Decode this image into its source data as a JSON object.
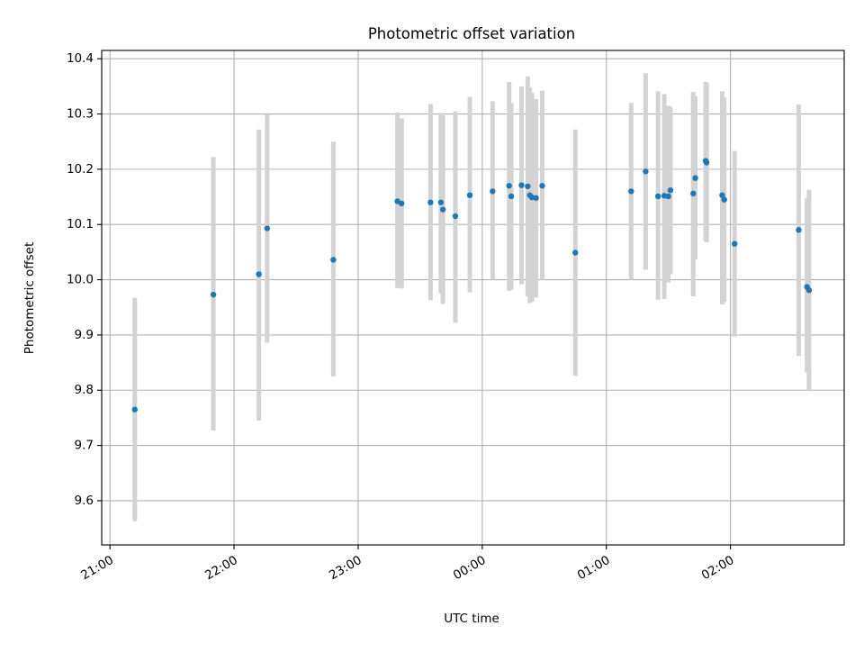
{
  "chart_data": {
    "type": "scatter",
    "title": "Photometric offset variation",
    "xlabel": "UTC time",
    "ylabel": "Photometric offset",
    "x_axis": {
      "type": "time",
      "start": "2024-01-01T20:56:00",
      "end": "2024-01-02T02:55:00",
      "ticks": [
        {
          "time": "2024-01-01T21:00:00",
          "label": "21:00"
        },
        {
          "time": "2024-01-01T22:00:00",
          "label": "22:00"
        },
        {
          "time": "2024-01-01T23:00:00",
          "label": "23:00"
        },
        {
          "time": "2024-01-02T00:00:00",
          "label": "00:00"
        },
        {
          "time": "2024-01-02T01:00:00",
          "label": "01:00"
        },
        {
          "time": "2024-01-02T02:00:00",
          "label": "02:00"
        }
      ]
    },
    "y_axis": {
      "ylim": [
        9.52,
        10.415
      ],
      "ticks": [
        9.6,
        9.7,
        9.8,
        9.9,
        10.0,
        10.1,
        10.2,
        10.3,
        10.4
      ],
      "tick_labels": [
        "9.6",
        "9.7",
        "9.8",
        "9.9",
        "10.0",
        "10.1",
        "10.2",
        "10.3",
        "10.4"
      ]
    },
    "grid": true,
    "legend": "none",
    "colors": {
      "marker": "#1f77b4",
      "errorbar": "#d3d3d3",
      "grid": "#b0b0b0"
    },
    "points": [
      {
        "t": "2024-01-01T21:12:00",
        "y": 9.765,
        "lo": 9.563,
        "hi": 9.967
      },
      {
        "t": "2024-01-01T21:50:00",
        "y": 9.973,
        "lo": 9.727,
        "hi": 10.222
      },
      {
        "t": "2024-01-01T22:12:00",
        "y": 10.01,
        "lo": 9.745,
        "hi": 10.272
      },
      {
        "t": "2024-01-01T22:16:00",
        "y": 10.093,
        "lo": 9.886,
        "hi": 10.3
      },
      {
        "t": "2024-01-01T22:48:00",
        "y": 10.036,
        "lo": 9.825,
        "hi": 10.25
      },
      {
        "t": "2024-01-01T23:19:00",
        "y": 10.142,
        "lo": 9.985,
        "hi": 10.303
      },
      {
        "t": "2024-01-01T23:21:00",
        "y": 10.138,
        "lo": 9.984,
        "hi": 10.292
      },
      {
        "t": "2024-01-01T23:35:00",
        "y": 10.14,
        "lo": 9.963,
        "hi": 10.318
      },
      {
        "t": "2024-01-01T23:40:00",
        "y": 10.14,
        "lo": 9.975,
        "hi": 10.302
      },
      {
        "t": "2024-01-01T23:41:00",
        "y": 10.127,
        "lo": 9.956,
        "hi": 10.298
      },
      {
        "t": "2024-01-01T23:47:00",
        "y": 10.115,
        "lo": 9.922,
        "hi": 10.305
      },
      {
        "t": "2024-01-01T23:54:00",
        "y": 10.153,
        "lo": 9.977,
        "hi": 10.331
      },
      {
        "t": "2024-01-02T00:05:00",
        "y": 10.16,
        "lo": 10.0,
        "hi": 10.323
      },
      {
        "t": "2024-01-02T00:13:00",
        "y": 10.17,
        "lo": 9.98,
        "hi": 10.358
      },
      {
        "t": "2024-01-02T00:14:00",
        "y": 10.151,
        "lo": 9.982,
        "hi": 10.32
      },
      {
        "t": "2024-01-02T00:19:00",
        "y": 10.171,
        "lo": 9.992,
        "hi": 10.35
      },
      {
        "t": "2024-01-02T00:22:00",
        "y": 10.169,
        "lo": 9.97,
        "hi": 10.368
      },
      {
        "t": "2024-01-02T00:23:00",
        "y": 10.153,
        "lo": 9.958,
        "hi": 10.348
      },
      {
        "t": "2024-01-02T00:24:00",
        "y": 10.149,
        "lo": 9.96,
        "hi": 10.338
      },
      {
        "t": "2024-01-02T00:26:00",
        "y": 10.148,
        "lo": 9.968,
        "hi": 10.327
      },
      {
        "t": "2024-01-02T00:29:00",
        "y": 10.17,
        "lo": 10.0,
        "hi": 10.342
      },
      {
        "t": "2024-01-02T00:45:00",
        "y": 10.049,
        "lo": 9.826,
        "hi": 10.272
      },
      {
        "t": "2024-01-02T01:12:00",
        "y": 10.16,
        "lo": 10.0,
        "hi": 10.32
      },
      {
        "t": "2024-01-02T01:19:00",
        "y": 10.196,
        "lo": 10.018,
        "hi": 10.374
      },
      {
        "t": "2024-01-02T01:25:00",
        "y": 10.151,
        "lo": 9.964,
        "hi": 10.341
      },
      {
        "t": "2024-01-02T01:28:00",
        "y": 10.152,
        "lo": 9.965,
        "hi": 10.336
      },
      {
        "t": "2024-01-02T01:30:00",
        "y": 10.151,
        "lo": 9.995,
        "hi": 10.315
      },
      {
        "t": "2024-01-02T01:31:00",
        "y": 10.162,
        "lo": 10.01,
        "hi": 10.312
      },
      {
        "t": "2024-01-02T01:42:00",
        "y": 10.156,
        "lo": 9.97,
        "hi": 10.34
      },
      {
        "t": "2024-01-02T01:43:00",
        "y": 10.184,
        "lo": 10.037,
        "hi": 10.332
      },
      {
        "t": "2024-01-02T01:48:00",
        "y": 10.215,
        "lo": 10.07,
        "hi": 10.358
      },
      {
        "t": "2024-01-02T01:48:30",
        "y": 10.212,
        "lo": 10.068,
        "hi": 10.356
      },
      {
        "t": "2024-01-02T01:56:00",
        "y": 10.153,
        "lo": 9.955,
        "hi": 10.341
      },
      {
        "t": "2024-01-02T01:57:00",
        "y": 10.145,
        "lo": 9.96,
        "hi": 10.33
      },
      {
        "t": "2024-01-02T02:02:00",
        "y": 10.065,
        "lo": 9.897,
        "hi": 10.233
      },
      {
        "t": "2024-01-02T02:33:00",
        "y": 10.09,
        "lo": 9.862,
        "hi": 10.317
      },
      {
        "t": "2024-01-02T02:37:00",
        "y": 9.987,
        "lo": 9.832,
        "hi": 10.147
      },
      {
        "t": "2024-01-02T02:38:00",
        "y": 9.981,
        "lo": 9.8,
        "hi": 10.163
      }
    ]
  }
}
